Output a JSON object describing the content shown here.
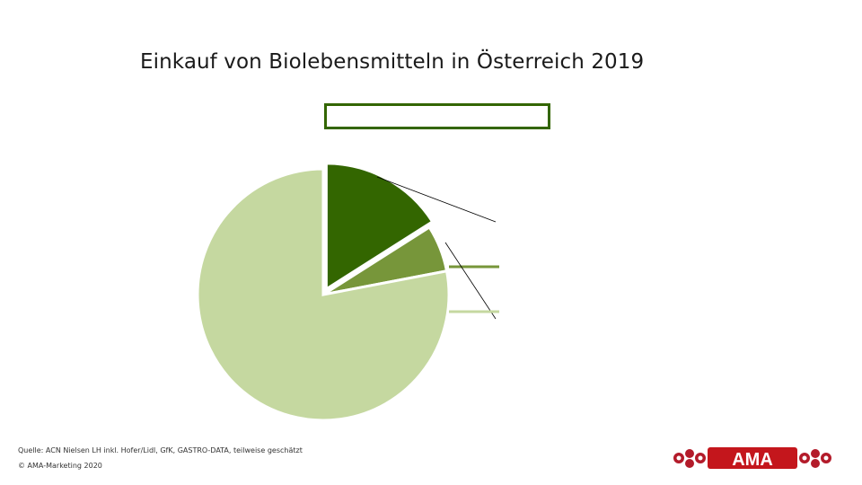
{
  "title": "Einkauf von Biolebensmitteln in Österreich 2019",
  "footer": {
    "source": "Quelle: ACN Nielsen LH inkl. Hofer/Lidl, GfK, GASTRO-DATA, teilweise geschätzt",
    "copyright": "© AMA-Marketing 2020"
  },
  "logo": {
    "text": "AMA"
  },
  "colors": {
    "dark_green": "#336600",
    "mid_green": "#77963a",
    "light_green": "#c5d8a0",
    "box_border": "#336600"
  },
  "chart_data": {
    "type": "pie",
    "title": "Einkauf von Biolebensmitteln in Österreich 2019",
    "slices": [
      {
        "value": 16,
        "color": "#336600",
        "exploded": true
      },
      {
        "value": 6,
        "color": "#77963a",
        "exploded": false
      },
      {
        "value": 78,
        "color": "#c5d8a0",
        "exploded": false
      }
    ]
  }
}
